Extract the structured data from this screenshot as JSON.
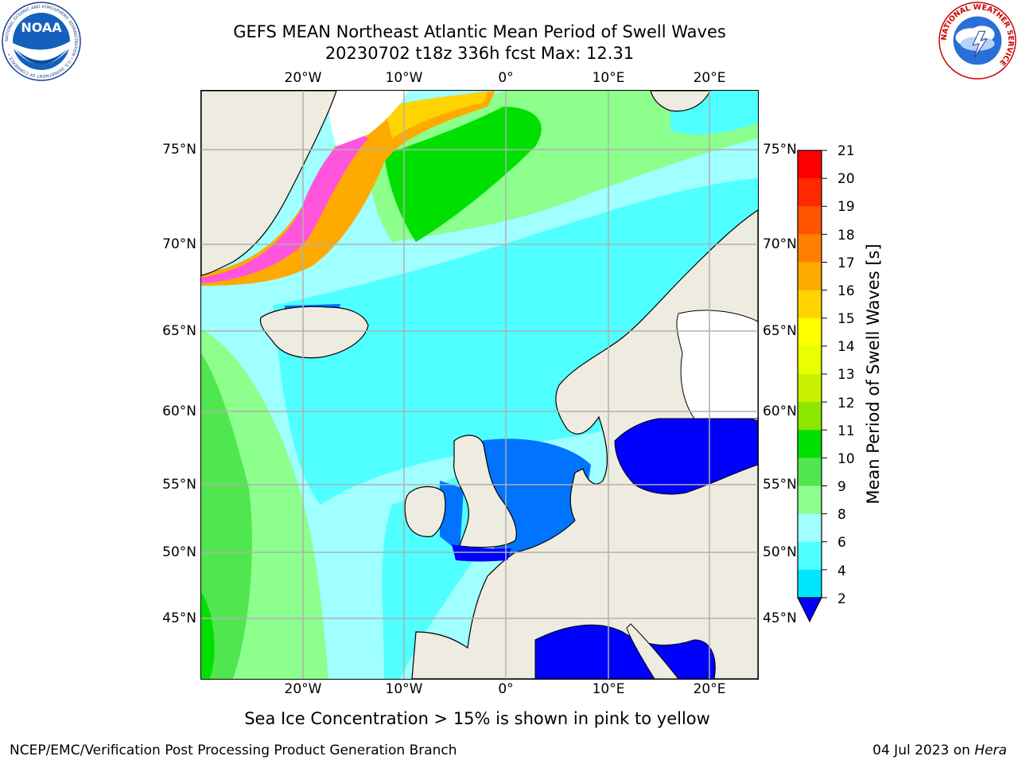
{
  "title": {
    "line1": "GEFS MEAN Northeast Atlantic Mean Period of Swell Waves",
    "line2": "20230702 t18z 336h fcst   Max: 12.31"
  },
  "map": {
    "lon_labels_top": [
      "20°W",
      "10°W",
      "0°",
      "10°E",
      "20°E"
    ],
    "lon_labels_bottom": [
      "20°W",
      "10°W",
      "0°",
      "10°E",
      "20°E"
    ],
    "lat_labels_left": [
      "75°N",
      "70°N",
      "65°N",
      "60°N",
      "55°N",
      "50°N",
      "45°N"
    ],
    "lat_labels_right": [
      "75°N",
      "70°N",
      "65°N",
      "60°N",
      "55°N",
      "50°N",
      "45°N"
    ],
    "land_color": "#eeece0",
    "grid_color": "#b0b0b0"
  },
  "colorbar": {
    "title": "Mean Period of Swell Waves [s]",
    "ticks": [
      "21",
      "20",
      "19",
      "18",
      "17",
      "16",
      "15",
      "14",
      "13",
      "12",
      "11",
      "10",
      "9",
      "8",
      "6",
      "4",
      "2"
    ],
    "colors": [
      "#ff0000",
      "#ff2a00",
      "#ff5500",
      "#ff8000",
      "#ffaa00",
      "#ffd400",
      "#ffff00",
      "#eaff00",
      "#c8f000",
      "#8ce600",
      "#00e000",
      "#50e650",
      "#8cff8c",
      "#a0ffff",
      "#50ffff",
      "#00e6ff",
      "#0073ff"
    ],
    "extend_color": "#0000ff"
  },
  "footnote": "Sea Ice Concentration > 15% is shown in pink to yellow",
  "footer": {
    "left": "NCEP/EMC/Verification Post Processing Product Generation Branch",
    "right_date": "04 Jul 2023 on ",
    "right_host": "Hera"
  },
  "logos": {
    "noaa_text": "NOAA",
    "noaa_ring": "NATIONAL OCEANIC AND ATMOSPHERIC ADMINISTRATION • U.S. DEPARTMENT OF COMMERCE •",
    "nws_ring": "NATIONAL WEATHER SERVICE"
  }
}
